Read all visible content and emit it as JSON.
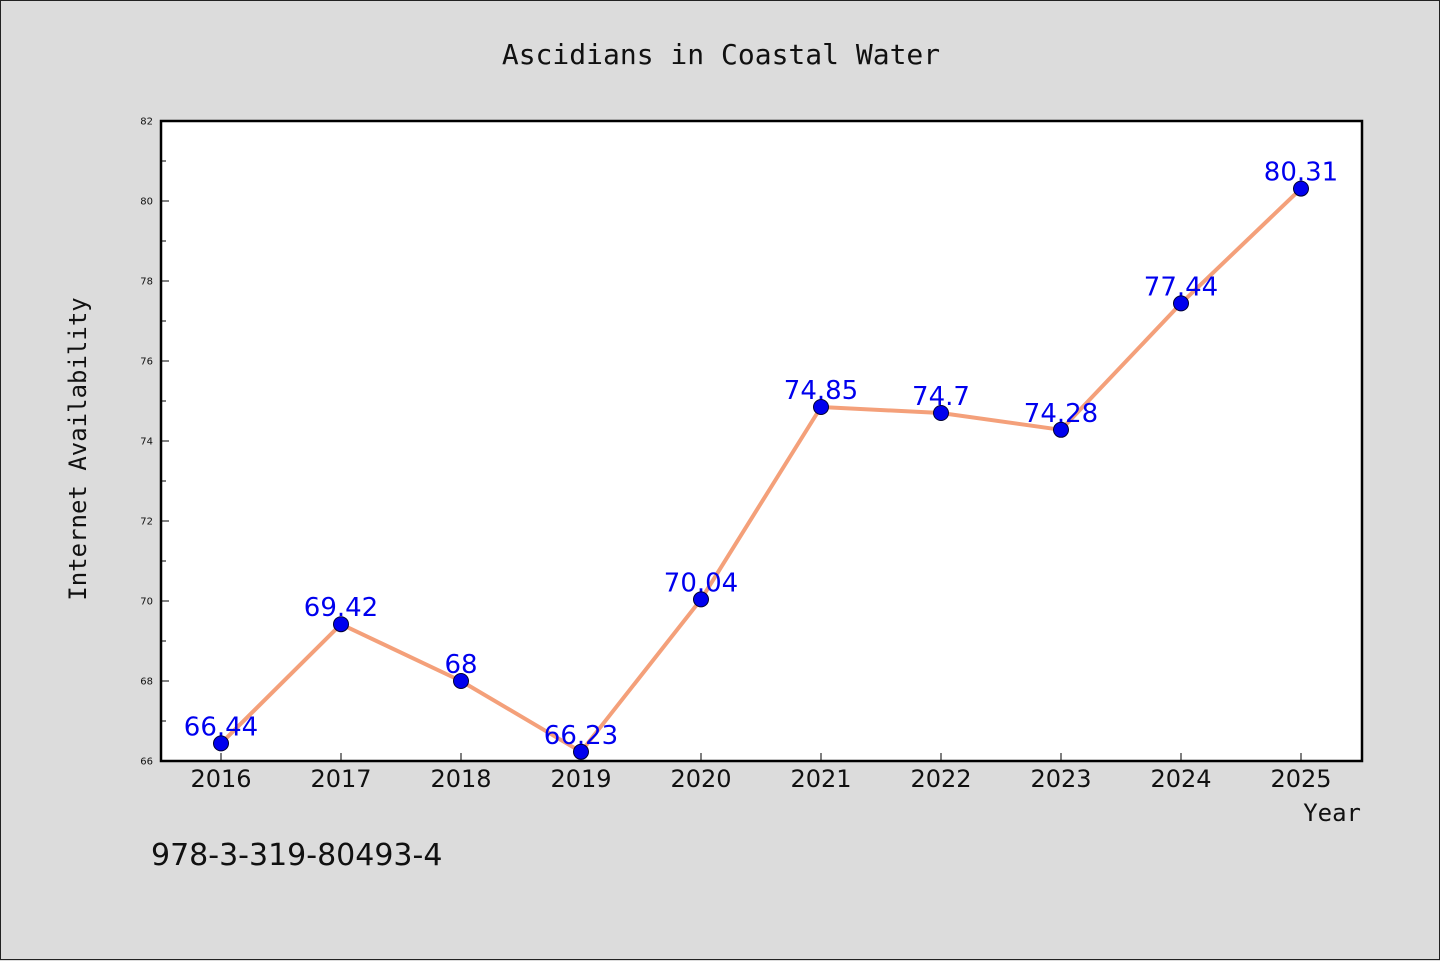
{
  "chart_data": {
    "type": "line",
    "title": "Ascidians in Coastal Water",
    "xlabel": "Year",
    "ylabel": "Internet Availability",
    "categories": [
      "2016",
      "2017",
      "2018",
      "2019",
      "2020",
      "2021",
      "2022",
      "2023",
      "2024",
      "2025"
    ],
    "series": [
      {
        "values": [
          66.44,
          69.42,
          68,
          66.23,
          70.04,
          74.85,
          74.7,
          74.28,
          77.44,
          80.31
        ],
        "line_color": "#f4a07a",
        "marker_color": "#0000ee",
        "data_labels": [
          "66.44",
          "69.42",
          "68",
          "66.23",
          "70.04",
          "74.85",
          "74.7",
          "74.28",
          "77.44",
          "80.31"
        ]
      }
    ],
    "ylim": [
      66,
      82
    ],
    "yticks": [
      "66",
      "68",
      "70",
      "72",
      "74",
      "76",
      "78",
      "80",
      "82"
    ],
    "grid": false,
    "legend": "none"
  },
  "annotation": {
    "isbn": "978-3-319-80493-4"
  },
  "colors": {
    "background": "#dcdcdc",
    "plot_background": "#ffffff",
    "line": "#f4a07a",
    "marker": "#0000ee",
    "label": "#0000ee"
  }
}
